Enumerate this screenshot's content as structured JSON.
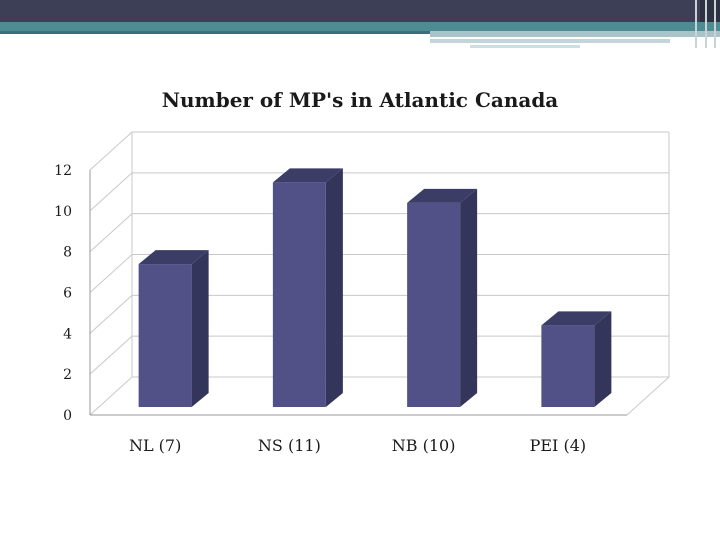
{
  "slide": {
    "colors": {
      "header_dark": "#3d3f56",
      "header_teal": "#4e8b93",
      "header_light": "#a8c4c8"
    }
  },
  "chart_data": {
    "type": "bar",
    "style": "3d-column",
    "title": "Number of MP's in Atlantic Canada",
    "xlabel": "",
    "ylabel": "",
    "categories": [
      "NL (7)",
      "NS (11)",
      "NB (10)",
      "PEI (4)"
    ],
    "values": [
      7,
      11,
      10,
      4
    ],
    "ylim": [
      0,
      12
    ],
    "yticks": [
      0,
      2,
      4,
      6,
      8,
      10,
      12
    ],
    "grid": true,
    "legend": "none",
    "colors": {
      "bar_front": "#515188",
      "bar_top": "#3c3d66",
      "bar_side": "#34355a",
      "grid": "#c8c8c8"
    }
  }
}
